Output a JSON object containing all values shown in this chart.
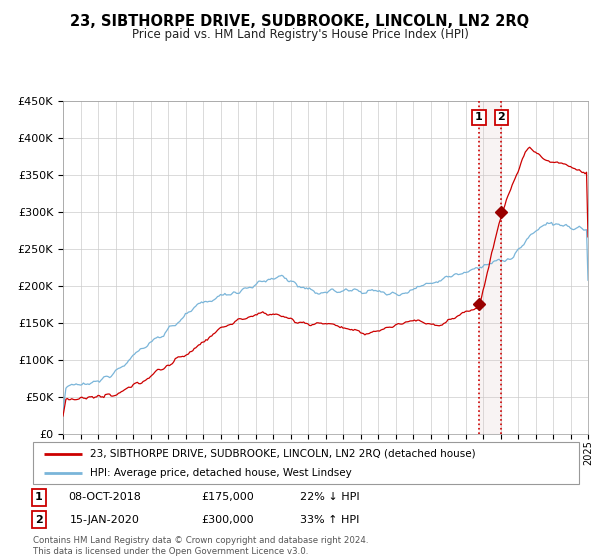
{
  "title": "23, SIBTHORPE DRIVE, SUDBROOKE, LINCOLN, LN2 2RQ",
  "subtitle": "Price paid vs. HM Land Registry's House Price Index (HPI)",
  "legend_line1": "23, SIBTHORPE DRIVE, SUDBROOKE, LINCOLN, LN2 2RQ (detached house)",
  "legend_line2": "HPI: Average price, detached house, West Lindsey",
  "annotation1_label": "1",
  "annotation1_date": "08-OCT-2018",
  "annotation1_price": "£175,000",
  "annotation1_hpi": "22% ↓ HPI",
  "annotation2_label": "2",
  "annotation2_date": "15-JAN-2020",
  "annotation2_price": "£300,000",
  "annotation2_hpi": "33% ↑ HPI",
  "sale1_year": 2018.77,
  "sale1_value": 175000,
  "sale2_year": 2020.04,
  "sale2_value": 300000,
  "hpi_color": "#7ab5d9",
  "price_color": "#cc0000",
  "sale_dot_color": "#990000",
  "vline_color": "#cc0000",
  "ylim_min": 0,
  "ylim_max": 450000,
  "xlim_min": 1995,
  "xlim_max": 2025,
  "footer": "Contains HM Land Registry data © Crown copyright and database right 2024.\nThis data is licensed under the Open Government Licence v3.0.",
  "background_color": "#ffffff",
  "grid_color": "#cccccc"
}
